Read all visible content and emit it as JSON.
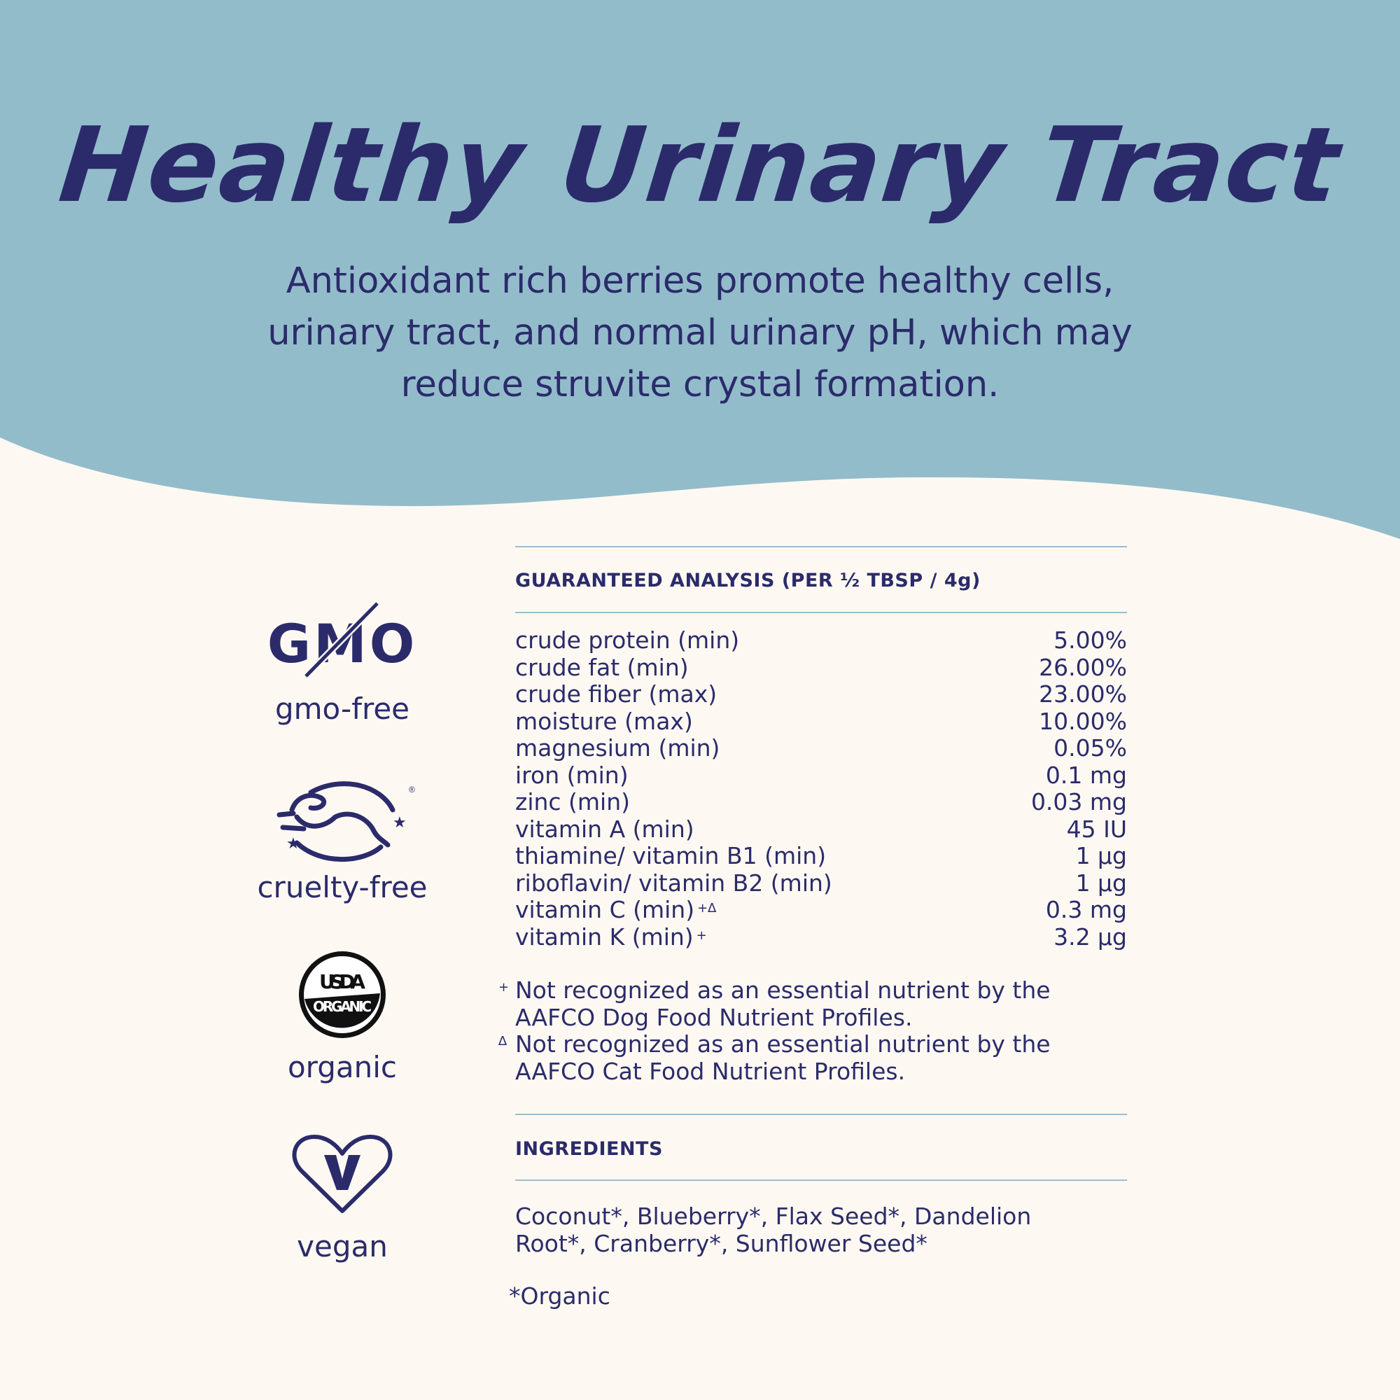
{
  "colors": {
    "header_bg": "#93bccb",
    "text": "#2b2b6b",
    "page_bg": "#fdf9f2",
    "rule": "#9dbccc"
  },
  "header": {
    "title": "Healthy Urinary Tract",
    "subtitle_lines": [
      "Antioxidant rich berries promote healthy cells,",
      "urinary tract, and normal urinary pH, which may",
      "reduce struvite crystal formation."
    ]
  },
  "badges": [
    {
      "icon": "gmo-crossed-icon",
      "logo_text": "GMO",
      "label": "gmo-free"
    },
    {
      "icon": "leaping-bunny-icon",
      "label": "cruelty-free"
    },
    {
      "icon": "usda-organic-seal-icon",
      "logo_text": "USDA ORGANIC",
      "label": "organic"
    },
    {
      "icon": "vegan-heart-icon",
      "logo_text": "V",
      "label": "vegan"
    }
  ],
  "analysis": {
    "heading": "GUARANTEED ANALYSIS (PER ½ TBSP / 4g)",
    "rows": [
      {
        "name": "crude protein (min)",
        "mark": "",
        "value": "5.00%"
      },
      {
        "name": "crude fat (min)",
        "mark": "",
        "value": "26.00%"
      },
      {
        "name": "crude fiber (max)",
        "mark": "",
        "value": "23.00%"
      },
      {
        "name": "moisture (max)",
        "mark": "",
        "value": "10.00%"
      },
      {
        "name": "magnesium (min)",
        "mark": "",
        "value": "0.05%"
      },
      {
        "name": "iron (min)",
        "mark": "",
        "value": "0.1 mg"
      },
      {
        "name": "zinc (min)",
        "mark": "",
        "value": "0.03 mg"
      },
      {
        "name": "vitamin A (min)",
        "mark": "",
        "value": "45 IU"
      },
      {
        "name": "thiamine/ vitamin B1 (min)",
        "mark": "",
        "value": "1 µg"
      },
      {
        "name": "riboflavin/ vitamin B2 (min)",
        "mark": "",
        "value": "1 µg"
      },
      {
        "name": "vitamin C (min)",
        "mark": "+∆",
        "value": "0.3 mg"
      },
      {
        "name": "vitamin K (min)",
        "mark": "+",
        "value": "3.2 µg"
      }
    ],
    "footnotes": [
      {
        "mark": "+",
        "lines": [
          "Not recognized as an essential nutrient by the",
          "AAFCO Dog Food Nutrient Profiles."
        ]
      },
      {
        "mark": "∆",
        "lines": [
          "Not recognized as an essential nutrient by the",
          "AAFCO Cat Food Nutrient Profiles."
        ]
      }
    ]
  },
  "ingredients": {
    "heading": "INGREDIENTS",
    "lines": [
      "Coconut*, Blueberry*, Flax Seed*, Dandelion",
      "Root*, Cranberry*, Sunflower Seed*"
    ],
    "note": "*Organic"
  }
}
